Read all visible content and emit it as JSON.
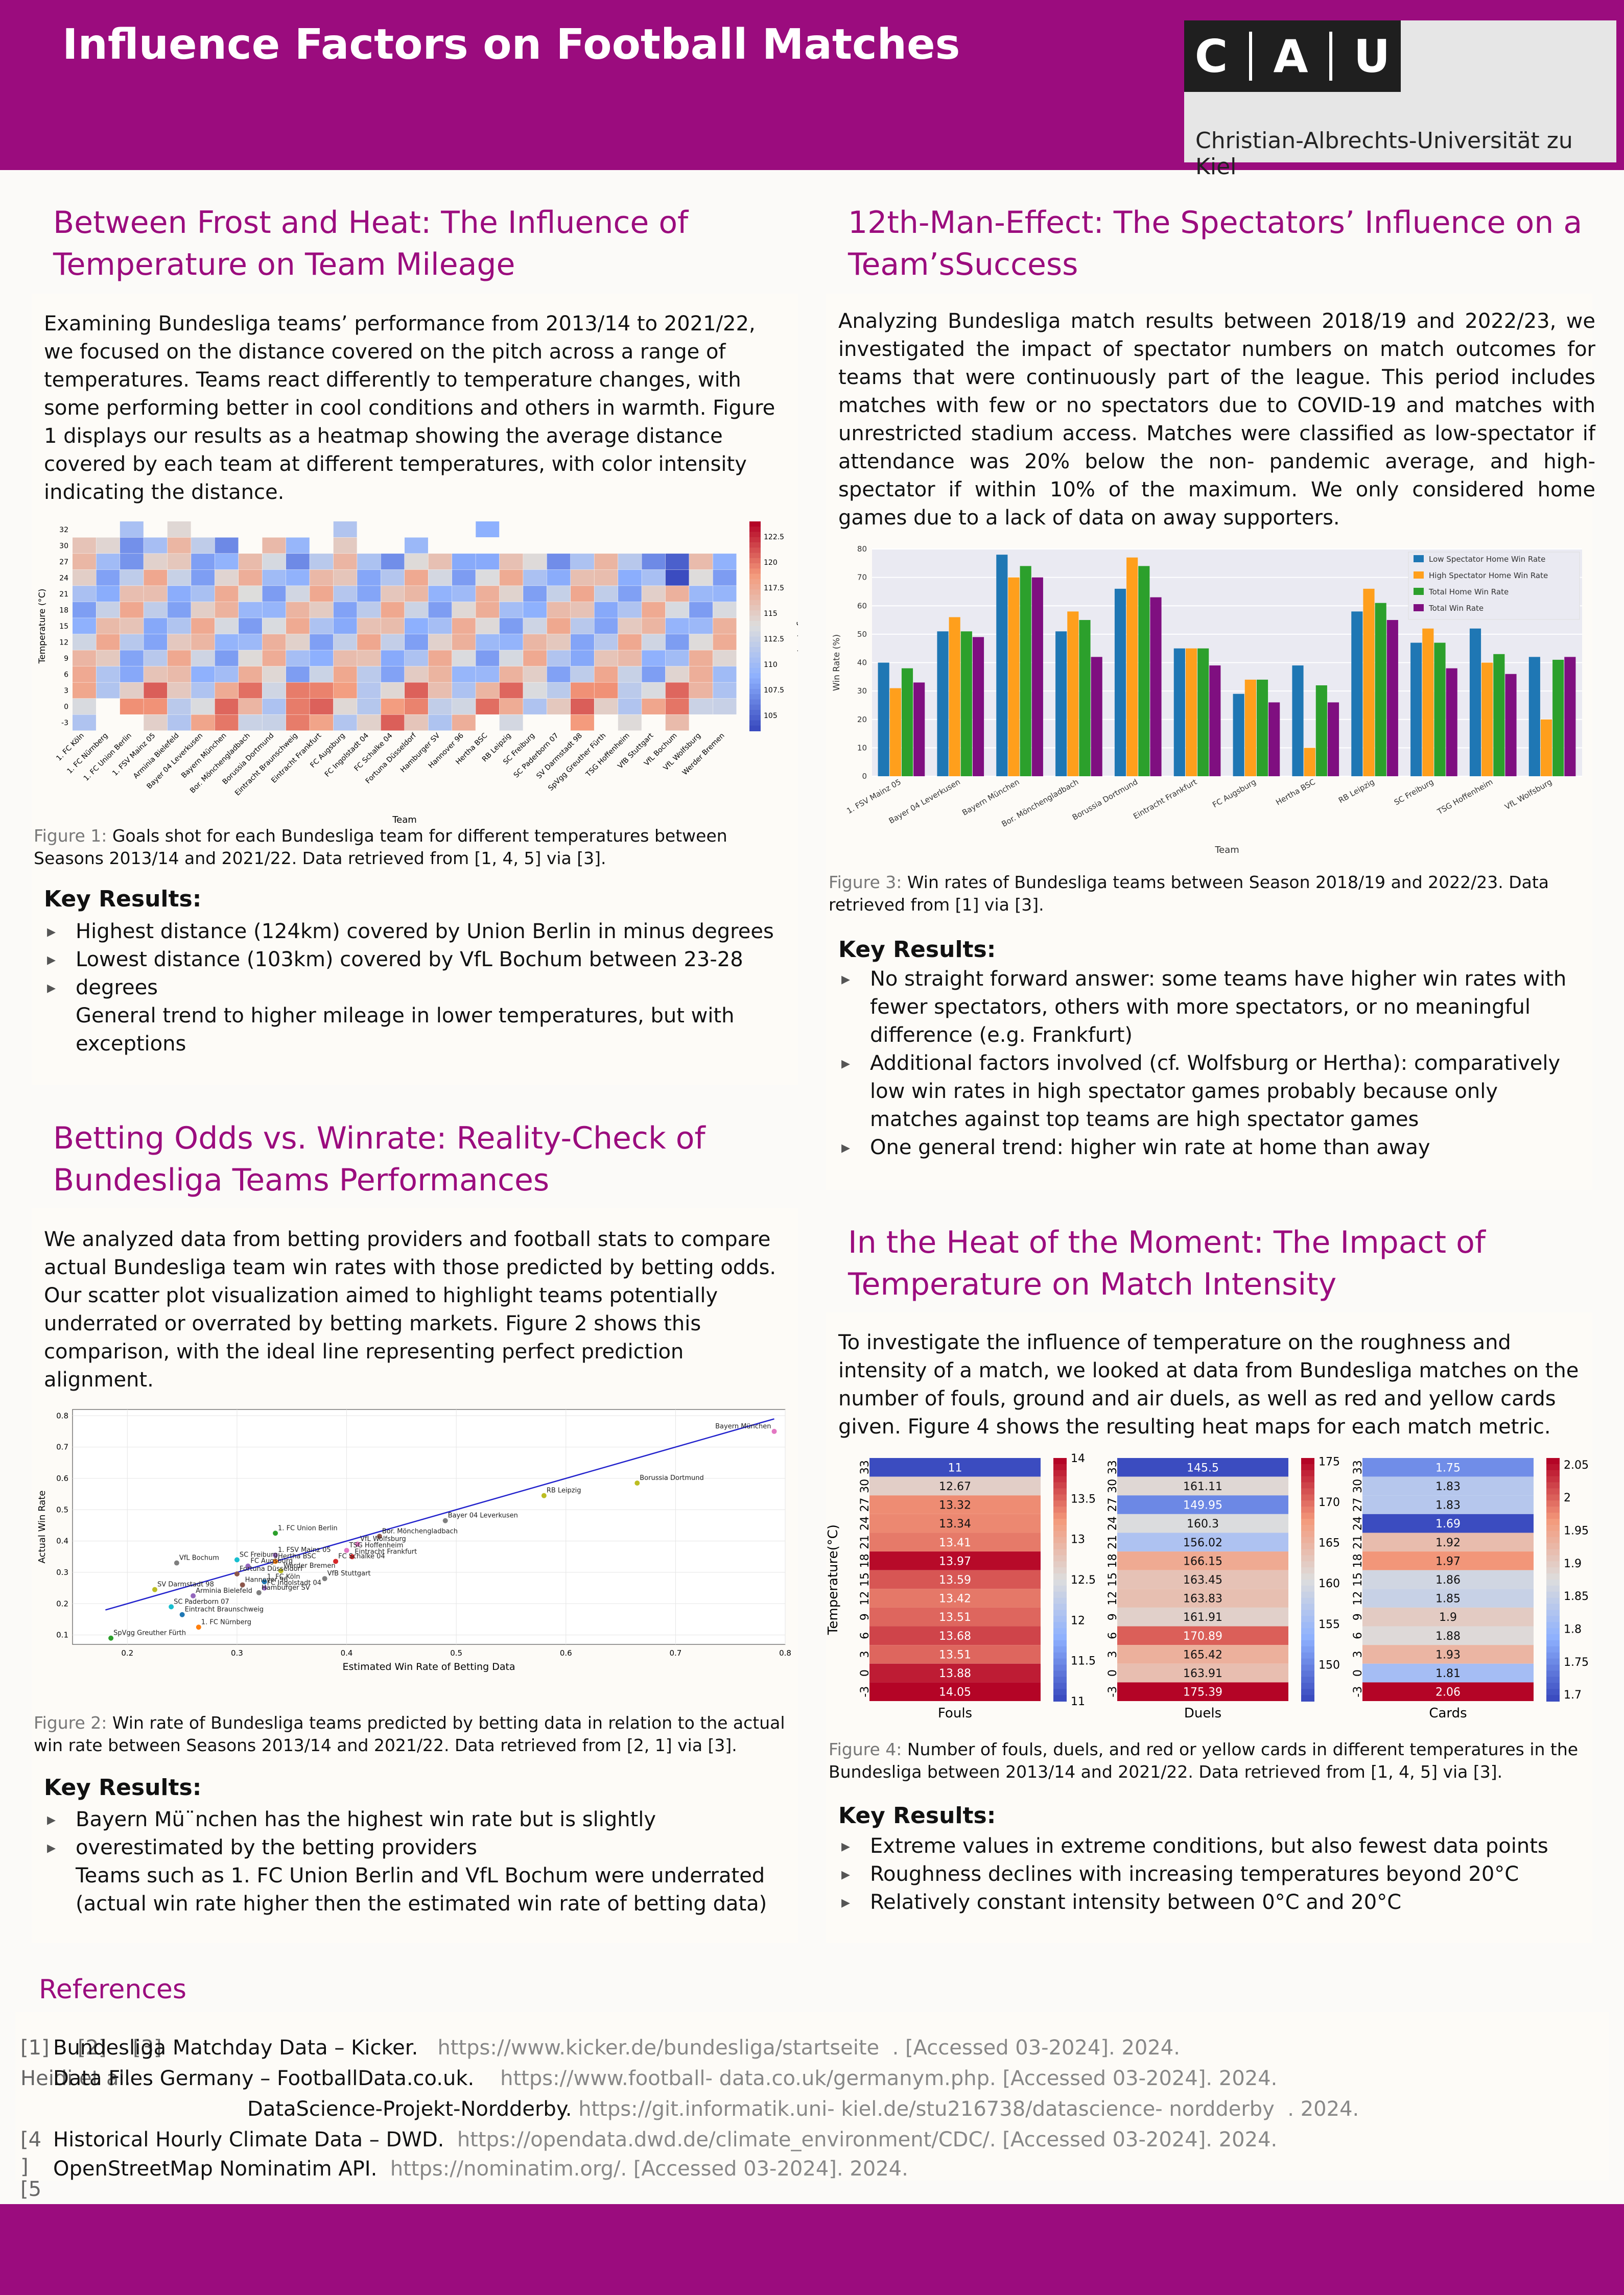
{
  "header": {
    "title": "Influence Factors on Football Matches",
    "logo_letters": [
      "C",
      "A",
      "U"
    ],
    "university": "Christian-Albrechts-Universität zu Kiel"
  },
  "s1": {
    "title_l1": "Between Frost and Heat: The Influence of",
    "title_l2": "Temperature on Team Mileage",
    "text": [
      "Examining Bundesliga teams’ performance from 2013/14 to 2021/22,",
      "we focused on the distance covered on the pitch across a range of",
      "temperatures. Teams react differently to temperature changes, with",
      "some performing better in cool conditions and others in warmth. Figure",
      "1 displays our results as a heatmap showing the average distance",
      "covered by each team at different temperatures, with color intensity",
      "indicating the distance."
    ],
    "caption_label": "Figure 1:",
    "caption_text": " Goals shot for each Bundesliga team for different temperatures between Seasons 2013/14 and 2021/22. Data retrieved from [1, 4, 5] via [3].",
    "kr_title": "Key Results:",
    "kr": [
      "Highest distance (124km) covered by Union Berlin in minus degrees",
      "Lowest distance (103km) covered by VfL Bochum between 23-28",
      "degrees",
      "General trend to higher mileage in lower temperatures, but with",
      "exceptions"
    ]
  },
  "s2": {
    "title_l1": "12th-Man-Effect: The Spectators’ Influence on a",
    "title_l2": "Team’sSuccess",
    "text": [
      "Analyzing Bundesliga match results between 2018/19 and 2022/23, we",
      "investigated the impact of spectator numbers on match outcomes for",
      "teams that were continuously part of the league. This period includes",
      "matches with few or no spectators due to COVID-19 and matches with",
      "unrestricted stadium access. Matches were classified as low-spectator if",
      "attendance was 20% below the non- pandemic average, and high-",
      "spectator if within 10% of the maximum. We only considered home",
      "games due to a lack of data on away supporters."
    ],
    "caption_label": "Figure 3:",
    "caption_text": " Win rates of Bundesliga teams between Season 2018/19 and 2022/23. Data retrieved from [1] via [3].",
    "kr_title": "Key Results:",
    "kr": [
      "No straight forward answer: some teams have higher win rates with",
      "fewer spectators, others with more spectators, or no meaningful",
      "difference (e.g. Frankfurt)",
      "Additional factors involved (cf. Wolfsburg or Hertha): comparatively",
      "low win rates in high spectator games probably because only",
      "matches against top teams are high spectator games",
      "One general trend: higher win rate at home than away"
    ]
  },
  "s3": {
    "title_l1": "Betting Odds vs. Winrate: Reality-Check of",
    "title_l2": "Bundesliga Teams Performances",
    "text": [
      "We analyzed data from betting providers and football stats to compare",
      "actual Bundesliga team win rates with those predicted by betting odds.",
      "Our scatter plot visualization aimed to highlight teams potentially",
      "underrated or overrated by betting markets. Figure 2 shows this",
      "comparison, with the ideal line representing perfect prediction",
      "alignment."
    ],
    "caption_label": "Figure 2:",
    "caption_text": " Win rate of Bundesliga teams predicted by betting data in relation to the actual win rate between Seasons 2013/14 and 2021/22. Data retrieved from [2, 1] via [3].",
    "kr_title": "Key Results:",
    "kr": [
      "Bayern Mü¨nchen has the highest win rate but is slightly",
      "overestimated by the betting providers",
      "Teams such as 1. FC Union Berlin and VfL Bochum were underrated",
      "(actual win rate higher then the estimated win rate of betting data)"
    ]
  },
  "s4": {
    "title_l1": "In the Heat of the Moment: The Impact of",
    "title_l2": "Temperature on Match Intensity",
    "text": [
      "To investigate the influence of temperature on the roughness and",
      "intensity of a match, we looked at data from Bundesliga matches on the",
      "number of fouls, ground and air duels, as well as red and yellow cards",
      "given. Figure 4 shows the resulting heat maps for each match metric."
    ],
    "caption_label": "Figure 4:",
    "caption_text": " Number of fouls, duels, and red or yellow cards in different temperatures in the Bundesliga between 2013/14 and 2021/22. Data retrieved from [1, 4, 5] via [3].",
    "kr_title": "Key Results:",
    "kr": [
      "Extreme values in extreme conditions, but also fewest data points",
      "Roughness declines with increasing temperatures beyond 20°C",
      "Relatively constant intensity between 0°C and 20°C"
    ]
  },
  "refs": {
    "title": "References",
    "r1_num": "[1]",
    "r1_num2": "[2]",
    "r1_num3": "[3]",
    "r1_name": "Bundesliga Matchday Data – Kicker.",
    "r1_url": "https://www.kicker.de/bundesliga/startseite",
    "r1_acc": ". [Accessed 03-2024]. 2024.",
    "r2_pre": "Heidi et al.",
    "r2_name": "Data Files Germany – FootballData.co.uk.",
    "r2_url": "https://www.football- data.co.uk/germanym.php",
    "r2_acc": ". [Accessed 03-2024]. 2024.",
    "r3_name": "DataScience-Projekt-Nordderby.",
    "r3_url": "https://git.informatik.uni- kiel.de/stu216738/datascience- nordderby",
    "r3_acc": ". 2024.",
    "r4_num": "[4",
    "r4_name": "Historical Hourly Climate Data – DWD.",
    "r4_url": "https://opendata.dwd.de/climate_environment/CDC/",
    "r4_acc": ". [Accessed 03-2024]. 2024.",
    "r5_num": "]",
    "r5_name": "OpenStreetMap Nominatim API.",
    "r5_url": "https://nominatim.org/",
    "r5_acc": ". [Accessed 03-2024]. 2024.",
    "r6_num": "[5",
    "r7_num": "]"
  },
  "chart_data": [
    {
      "type": "heatmap",
      "id": "fig1",
      "ylabel": "Temperature (°C)",
      "xlabel": "Team",
      "colorbar_label": "Mileage (km)",
      "y": [
        32,
        30,
        27,
        24,
        21,
        18,
        15,
        12,
        9,
        6,
        3,
        0,
        -3
      ],
      "x": [
        "1. FC Köln",
        "1. FC Nürnberg",
        "1. FC Union Berlin",
        "1. FSV Mainz 05",
        "Arminia Bielefeld",
        "Bayer 04 Leverkusen",
        "Bayern München",
        "Bor. Mönchengladbach",
        "Borussia Dortmund",
        "Eintracht Braunschweig",
        "Eintracht Frankfurt",
        "FC Augsburg",
        "FC Ingolstadt 04",
        "FC Schalke 04",
        "Fortuna Düsseldorf",
        "Hamburger SV",
        "Hannover 96",
        "Hertha BSC",
        "RB Leipzig",
        "SC Freiburg",
        "SC Paderborn 07",
        "SV Darmstadt 98",
        "SpVgg Greuther Fürth",
        "TSG Hoffenheim",
        "VfB Stuttgart",
        "VfL Bochum",
        "VfL Wolfsburg",
        "Werder Bremen"
      ],
      "colorbar_ticks": [
        105.0,
        107.5,
        110.0,
        112.5,
        115.0,
        117.5,
        120.0,
        122.5
      ]
    },
    {
      "type": "bar",
      "id": "fig3",
      "ylabel": "Win Rate (%)",
      "xlabel": "Team",
      "ylim": [
        0,
        80
      ],
      "yticks": [
        0,
        10,
        20,
        30,
        40,
        50,
        60,
        70,
        80
      ],
      "categories": [
        "1. FSV Mainz 05",
        "Bayer 04 Leverkusen",
        "Bayern München",
        "Bor. Mönchengladbach",
        "Borussia Dortmund",
        "Eintracht Frankfurt",
        "FC Augsburg",
        "Hertha BSC",
        "RB Leipzig",
        "SC Freiburg",
        "TSG Hoffenheim",
        "VfL Wolfsburg"
      ],
      "legend_position": "top-right",
      "series": [
        {
          "name": "Low Spectator Home Win Rate",
          "color": "#1f77b4",
          "values": [
            40,
            51,
            78,
            51,
            66,
            45,
            29,
            39,
            58,
            47,
            52,
            42
          ]
        },
        {
          "name": "High Spectator Home Win Rate",
          "color": "#ff9f1c",
          "values": [
            31,
            56,
            70,
            58,
            77,
            45,
            34,
            10,
            66,
            52,
            40,
            20
          ]
        },
        {
          "name": "Total Home Win Rate",
          "color": "#2ca02c",
          "values": [
            38,
            51,
            74,
            55,
            74,
            45,
            34,
            32,
            61,
            47,
            43,
            41
          ]
        },
        {
          "name": "Total Win Rate",
          "color": "#7f0f80",
          "values": [
            33,
            49,
            70,
            42,
            63,
            39,
            26,
            26,
            55,
            38,
            36,
            42
          ]
        }
      ]
    },
    {
      "type": "scatter",
      "id": "fig2",
      "xlabel": "Estimated Win Rate of Betting Data",
      "ylabel": "Actual Win Rate",
      "xlim": [
        0.15,
        0.8
      ],
      "ylim": [
        0.07,
        0.82
      ],
      "xticks": [
        0.2,
        0.3,
        0.4,
        0.5,
        0.6,
        0.7,
        0.8
      ],
      "yticks": [
        0.1,
        0.2,
        0.3,
        0.4,
        0.5,
        0.6,
        0.7,
        0.8
      ],
      "ideal_line": [
        [
          0.18,
          0.18
        ],
        [
          0.79,
          0.79
        ]
      ],
      "points": [
        {
          "label": "Bayern München",
          "x": 0.79,
          "y": 0.75,
          "color": "#e377c2"
        },
        {
          "label": "Borussia Dortmund",
          "x": 0.665,
          "y": 0.585,
          "color": "#bcbd22"
        },
        {
          "label": "RB Leipzig",
          "x": 0.58,
          "y": 0.545,
          "color": "#bcbd22"
        },
        {
          "label": "Bayer 04 Leverkusen",
          "x": 0.49,
          "y": 0.465,
          "color": "#7f7f7f"
        },
        {
          "label": "Bor. Mönchengladbach",
          "x": 0.43,
          "y": 0.415,
          "color": "#8c564b"
        },
        {
          "label": "VfL Wolfsburg",
          "x": 0.41,
          "y": 0.39,
          "color": "#e377c2"
        },
        {
          "label": "1. FC Union Berlin",
          "x": 0.335,
          "y": 0.425,
          "color": "#2ca02c"
        },
        {
          "label": "TSG Hoffenheim",
          "x": 0.4,
          "y": 0.37,
          "color": "#e377c2"
        },
        {
          "label": "Eintracht Frankfurt",
          "x": 0.405,
          "y": 0.35,
          "color": "#d62728"
        },
        {
          "label": "FC Schalke 04",
          "x": 0.39,
          "y": 0.335,
          "color": "#d62728"
        },
        {
          "label": "1. FSV Mainz 05",
          "x": 0.335,
          "y": 0.355,
          "color": "#9467bd"
        },
        {
          "label": "Hertha BSC",
          "x": 0.335,
          "y": 0.335,
          "color": "#ff7f0e"
        },
        {
          "label": "SC Freiburg",
          "x": 0.3,
          "y": 0.34,
          "color": "#17becf"
        },
        {
          "label": "FC Augsburg",
          "x": 0.31,
          "y": 0.32,
          "color": "#9467bd"
        },
        {
          "label": "Werder Bremen",
          "x": 0.34,
          "y": 0.305,
          "color": "#bcbd22"
        },
        {
          "label": "VfB Stuttgart",
          "x": 0.38,
          "y": 0.28,
          "color": "#7f7f7f"
        },
        {
          "label": "VfL Bochum",
          "x": 0.245,
          "y": 0.33,
          "color": "#7f7f7f"
        },
        {
          "label": "Fortuna Düsseldorf",
          "x": 0.3,
          "y": 0.295,
          "color": "#8c564b"
        },
        {
          "label": "1. FC Köln",
          "x": 0.325,
          "y": 0.27,
          "color": "#1f77b4"
        },
        {
          "label": "Hannover 96",
          "x": 0.305,
          "y": 0.26,
          "color": "#8c564b"
        },
        {
          "label": "FC Ingolstadt 04",
          "x": 0.325,
          "y": 0.25,
          "color": "#9467bd"
        },
        {
          "label": "Hamburger SV",
          "x": 0.32,
          "y": 0.235,
          "color": "#7f7f7f"
        },
        {
          "label": "SV Darmstadt 98",
          "x": 0.225,
          "y": 0.245,
          "color": "#bcbd22"
        },
        {
          "label": "Arminia Bielefeld",
          "x": 0.26,
          "y": 0.225,
          "color": "#9467bd"
        },
        {
          "label": "SC Paderborn 07",
          "x": 0.24,
          "y": 0.19,
          "color": "#17becf"
        },
        {
          "label": "Eintracht Braunschweig",
          "x": 0.25,
          "y": 0.165,
          "color": "#1f77b4"
        },
        {
          "label": "1. FC Nürnberg",
          "x": 0.265,
          "y": 0.125,
          "color": "#ff7f0e"
        },
        {
          "label": "SpVgg Greuther Fürth",
          "x": 0.185,
          "y": 0.09,
          "color": "#2ca02c"
        }
      ]
    },
    {
      "type": "heatmap",
      "id": "fig4",
      "ylabel": "Temperature(°C)",
      "y": [
        33,
        30,
        27,
        24,
        21,
        18,
        15,
        12,
        9,
        6,
        3,
        0,
        -3
      ],
      "panels": [
        {
          "xlabel": "Fouls",
          "values": [
            11.0,
            12.67,
            13.32,
            13.34,
            13.41,
            13.97,
            13.59,
            13.42,
            13.51,
            13.68,
            13.51,
            13.88,
            14.05
          ],
          "vmin": 11.0,
          "vmax": 14.0,
          "ticks": [
            11.0,
            11.5,
            12.0,
            12.5,
            13.0,
            13.5,
            14.0
          ]
        },
        {
          "xlabel": "Duels",
          "values": [
            145.5,
            161.11,
            149.95,
            160.3,
            156.02,
            166.15,
            163.45,
            163.83,
            161.91,
            170.89,
            165.42,
            163.91,
            175.39
          ],
          "vmin": 145.5,
          "vmax": 175.4,
          "ticks": [
            150,
            155,
            160,
            165,
            170,
            175
          ]
        },
        {
          "xlabel": "Cards",
          "values": [
            1.75,
            1.83,
            1.83,
            1.69,
            1.92,
            1.97,
            1.86,
            1.85,
            1.9,
            1.88,
            1.93,
            1.81,
            2.06
          ],
          "vmin": 1.69,
          "vmax": 2.06,
          "ticks": [
            1.7,
            1.75,
            1.8,
            1.85,
            1.9,
            1.95,
            2.0,
            2.05
          ]
        }
      ]
    }
  ]
}
